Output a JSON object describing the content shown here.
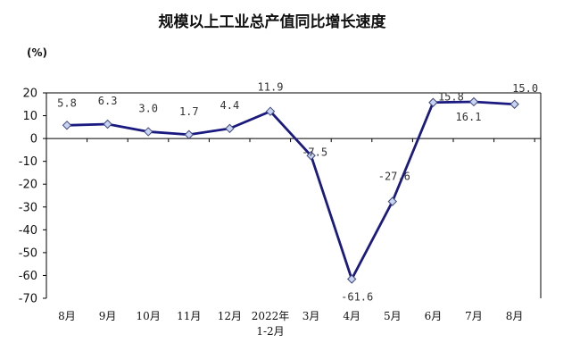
{
  "chart_data": {
    "type": "line",
    "title": "规模以上工业总产值同比增长速度",
    "ylabel": "(%)",
    "categories": [
      "8月",
      "9月",
      "10月",
      "11月",
      "12月",
      "2022年\n1-2月",
      "3月",
      "4月",
      "5月",
      "6月",
      "7月",
      "8月"
    ],
    "series": [
      {
        "values": [
          5.8,
          6.3,
          3.0,
          1.7,
          4.4,
          11.9,
          -7.5,
          -61.6,
          -27.6,
          15.8,
          16.1,
          15.0
        ],
        "labels": [
          "5.8",
          "6.3",
          "3.0",
          "1.7",
          "4.4",
          "11.9",
          "-7.5",
          "-61.6",
          "-27.6",
          "15.8",
          "16.1",
          "15.0"
        ]
      }
    ],
    "ylim": [
      -70,
      20
    ],
    "yticks": [
      20,
      10,
      0,
      -10,
      -20,
      -30,
      -40,
      -50,
      -60,
      -70
    ],
    "grid": false,
    "legend": "none",
    "colors": {
      "line": "#1a1a80",
      "marker_fill": "#c8d4f0",
      "marker_stroke": "#404880"
    }
  }
}
